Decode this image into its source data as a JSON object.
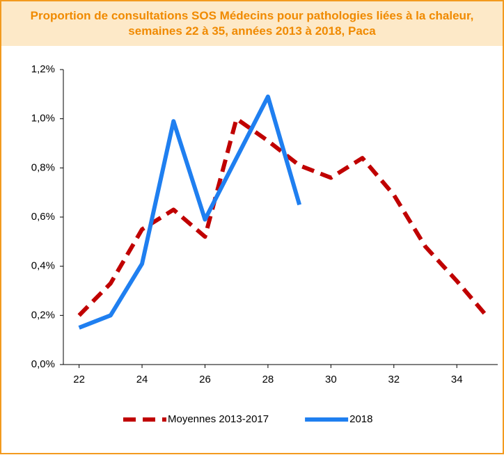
{
  "chart_data": {
    "type": "line",
    "title": "Proportion de consultations SOS Médecins pour pathologies liées à la chaleur, semaines 22 à 35, années 2013 à 2018, Paca",
    "x": [
      22,
      23,
      24,
      25,
      26,
      27,
      28,
      29,
      30,
      31,
      32,
      33,
      34,
      35
    ],
    "series": [
      {
        "name": "Moyennes 2013-2017",
        "color": "#c00000",
        "dash": true,
        "values": [
          0.2,
          0.33,
          0.55,
          0.63,
          0.52,
          1.0,
          0.91,
          0.81,
          0.76,
          0.84,
          0.69,
          0.48,
          0.34,
          0.19
        ]
      },
      {
        "name": "2018",
        "color": "#1f7ff0",
        "dash": false,
        "values": [
          0.15,
          0.2,
          0.41,
          0.99,
          0.59,
          0.84,
          1.09,
          0.65,
          null,
          null,
          null,
          null,
          null,
          null
        ]
      }
    ],
    "xlim": [
      21.5,
      35.3
    ],
    "xticks": [
      22,
      24,
      26,
      28,
      30,
      32,
      34
    ],
    "ylim": [
      0,
      1.2
    ],
    "yticks": [
      {
        "value": 0,
        "label": "0,0%"
      },
      {
        "value": 0.2,
        "label": "0,2%"
      },
      {
        "value": 0.4,
        "label": "0,4%"
      },
      {
        "value": 0.6,
        "label": "0,6%"
      },
      {
        "value": 0.8,
        "label": "0,8%"
      },
      {
        "value": 1.0,
        "label": "1,0%"
      },
      {
        "value": 1.2,
        "label": "1,2%"
      }
    ],
    "legend": "bottom"
  }
}
